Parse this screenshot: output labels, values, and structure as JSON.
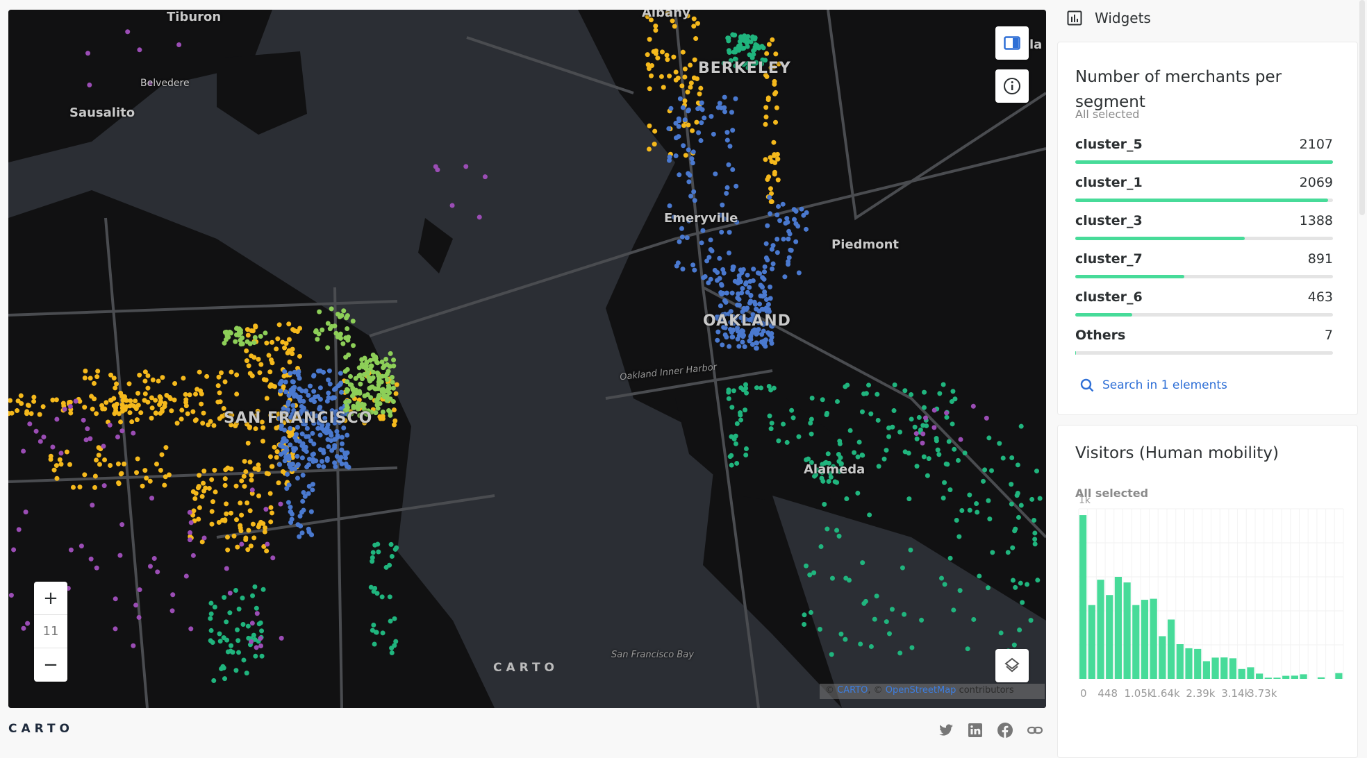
{
  "map": {
    "labels": {
      "tiburon": "Tiburon",
      "belvedere": "Belvedere",
      "sausalito": "Sausalito",
      "albany": "Albany",
      "berkeley": "BERKELEY",
      "emeryville": "Emeryville",
      "piedmont": "Piedmont",
      "oakland": "OAKLAND",
      "oakland_harbor": "Oakland Inner Harbor",
      "san_francisco": "SAN FRANCISCO",
      "alameda": "Alameda",
      "sf_bay": "San Francisco Bay",
      "edge": "la"
    },
    "zoom_in": "+",
    "zoom_level": "11",
    "zoom_out": "−",
    "watermark": "CARTO",
    "attribution": {
      "prefix": "© ",
      "carto": "CARTO",
      "sep": ", © ",
      "osm": "OpenStreetMap",
      "suffix": " contributors"
    },
    "layer_colors": {
      "cluster_a": "#f5b91c",
      "cluster_b": "#4a79cf",
      "cluster_c": "#8dcf58",
      "cluster_d": "#20b57e",
      "cluster_e": "#9b4db5"
    },
    "icons": [
      "panel-toggle-icon",
      "info-icon",
      "layers-icon"
    ]
  },
  "footer": {
    "logo": "CARTO",
    "icons": [
      "twitter-icon",
      "linkedin-icon",
      "facebook-icon",
      "link-icon"
    ]
  },
  "panel": {
    "header": "Widgets",
    "category_widget": {
      "title": "Number of merchants per segment",
      "subtitle": "All selected",
      "items": [
        {
          "name": "cluster_5",
          "value": 2107
        },
        {
          "name": "cluster_1",
          "value": 2069
        },
        {
          "name": "cluster_3",
          "value": 1388
        },
        {
          "name": "cluster_7",
          "value": 891
        },
        {
          "name": "cluster_6",
          "value": 463
        },
        {
          "name": "Others",
          "value": 7
        }
      ],
      "search_label": "Search in 1 elements",
      "bar_color": "#47db99"
    },
    "histogram_widget": {
      "title": "Visitors (Human mobility)",
      "subtitle": "All selected"
    }
  },
  "chart_data": {
    "type": "bar",
    "title": "Visitors (Human mobility)",
    "y_tick_top": "1k",
    "ylim": [
      0,
      1000
    ],
    "x_tick_labels": [
      "0",
      "448",
      "1.05k",
      "1.64k",
      "2.39k",
      "3.14k",
      "3.73k"
    ],
    "values": [
      963,
      434,
      583,
      493,
      600,
      567,
      434,
      465,
      471,
      251,
      349,
      204,
      180,
      176,
      104,
      125,
      126,
      121,
      58,
      68,
      31,
      7,
      7,
      18,
      19,
      27,
      0,
      9,
      0,
      34
    ],
    "color": "#47db99",
    "grid": true
  }
}
